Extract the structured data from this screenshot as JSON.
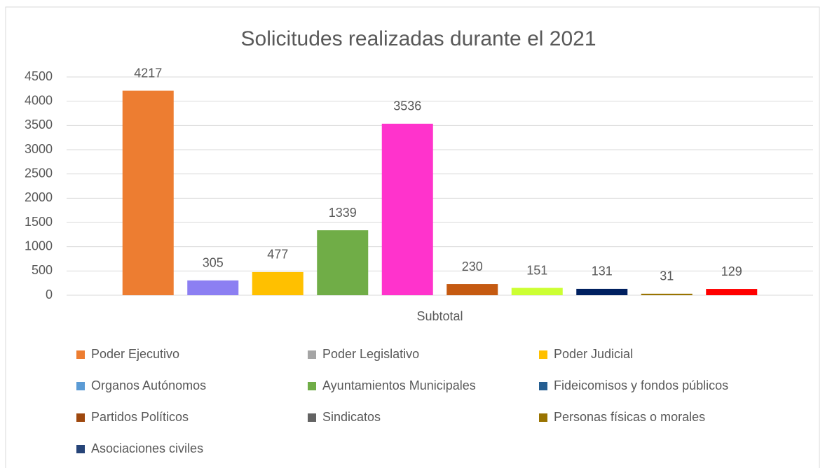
{
  "chart_data": {
    "type": "bar",
    "title": "Solicitudes realizadas durante el 2021",
    "categories": [
      "Subtotal"
    ],
    "series": [
      {
        "name": "Poder Ejecutivo",
        "color": "#ed7d31",
        "legend_color": "#ed7d31",
        "values": [
          4217
        ]
      },
      {
        "name": "Poder Legislativo",
        "color": "#8c7ff2",
        "legend_color": "#a5a5a5",
        "values": [
          305
        ]
      },
      {
        "name": "Poder Judicial",
        "color": "#ffc000",
        "legend_color": "#ffc000",
        "values": [
          477
        ]
      },
      {
        "name": "Organos Autónomos",
        "color": "#70ad47",
        "legend_color": "#5b9bd5",
        "values": [
          1339
        ]
      },
      {
        "name": "Ayuntamientos Municipales",
        "color": "#ff33cc",
        "legend_color": "#70ad47",
        "values": [
          3536
        ]
      },
      {
        "name": "Fideicomisos y fondos públicos",
        "color": "#c55a11",
        "legend_color": "#255e91",
        "values": [
          230
        ]
      },
      {
        "name": "Partidos Políticos",
        "color": "#ccff33",
        "legend_color": "#9e480e",
        "values": [
          151
        ]
      },
      {
        "name": "Sindicatos",
        "color": "#002060",
        "legend_color": "#636363",
        "values": [
          131
        ]
      },
      {
        "name": "Personas físicas o morales",
        "color": "#997300",
        "legend_color": "#997300",
        "values": [
          31
        ]
      },
      {
        "name": "Asociaciones civiles",
        "color": "#ff0000",
        "legend_color": "#264478",
        "values": [
          129
        ]
      }
    ],
    "ylim": [
      0,
      4500
    ],
    "yticks": [
      0,
      500,
      1000,
      1500,
      2000,
      2500,
      3000,
      3500,
      4000,
      4500
    ],
    "grid": true,
    "legend": "bottom"
  }
}
